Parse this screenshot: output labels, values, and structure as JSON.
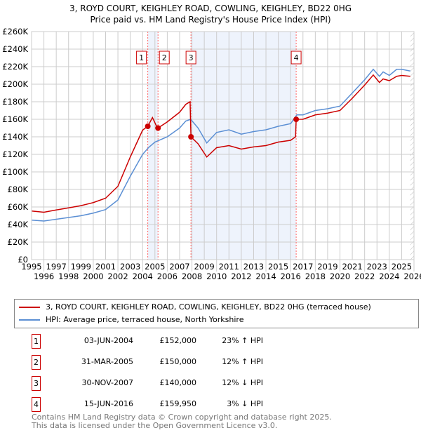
{
  "chart_data": {
    "type": "line",
    "title": "3, ROYD COURT, KEIGHLEY ROAD, COWLING, KEIGHLEY, BD22 0HG",
    "subtitle": "Price paid vs. HM Land Registry's House Price Index (HPI)",
    "xlim": [
      1995,
      2026
    ],
    "ylim": [
      0,
      260000
    ],
    "x_ticks": [
      "1995",
      "1996",
      "1997",
      "1998",
      "1999",
      "2000",
      "2001",
      "2002",
      "2003",
      "2004",
      "2005",
      "2006",
      "2007",
      "2008",
      "2009",
      "2010",
      "2011",
      "2012",
      "2013",
      "2014",
      "2015",
      "2016",
      "2017",
      "2018",
      "2019",
      "2020",
      "2021",
      "2022",
      "2023",
      "2024",
      "2025",
      "2026"
    ],
    "y_ticks": [
      {
        "v": 0,
        "label": "£0"
      },
      {
        "v": 20000,
        "label": "£20K"
      },
      {
        "v": 40000,
        "label": "£40K"
      },
      {
        "v": 60000,
        "label": "£60K"
      },
      {
        "v": 80000,
        "label": "£80K"
      },
      {
        "v": 100000,
        "label": "£100K"
      },
      {
        "v": 120000,
        "label": "£120K"
      },
      {
        "v": 140000,
        "label": "£140K"
      },
      {
        "v": 160000,
        "label": "£160K"
      },
      {
        "v": 180000,
        "label": "£180K"
      },
      {
        "v": 200000,
        "label": "£200K"
      },
      {
        "v": 220000,
        "label": "£220K"
      },
      {
        "v": 240000,
        "label": "£240K"
      },
      {
        "v": 260000,
        "label": "£260K"
      }
    ],
    "grid": true,
    "colors": {
      "property": "#cc0000",
      "hpi": "#5b8fd4",
      "shade": "#eef3fc",
      "marker_line": "#ff6666"
    },
    "series": [
      {
        "name": "3, ROYD COURT, KEIGHLEY ROAD, COWLING, KEIGHLEY, BD22 0HG (terraced house)",
        "points": [
          [
            1995,
            55400
          ],
          [
            1996,
            54000
          ],
          [
            1997,
            56600
          ],
          [
            1998,
            59000
          ],
          [
            1999,
            61500
          ],
          [
            2000,
            65000
          ],
          [
            2001,
            70000
          ],
          [
            2002,
            83600
          ],
          [
            2003,
            117000
          ],
          [
            2004,
            147600
          ],
          [
            2004.42,
            152000
          ],
          [
            2004.8,
            162000
          ],
          [
            2005.2,
            150000
          ],
          [
            2005.25,
            150000
          ],
          [
            2006,
            157000
          ],
          [
            2007,
            168000
          ],
          [
            2007.5,
            177000
          ],
          [
            2007.85,
            180000
          ],
          [
            2007.92,
            140000
          ],
          [
            2008.5,
            132000
          ],
          [
            2009.2,
            117000
          ],
          [
            2010,
            127600
          ],
          [
            2011,
            130000
          ],
          [
            2012,
            126000
          ],
          [
            2013,
            128500
          ],
          [
            2014,
            130000
          ],
          [
            2015,
            134000
          ],
          [
            2016,
            136000
          ],
          [
            2016.4,
            140000
          ],
          [
            2016.45,
            159950
          ],
          [
            2017,
            160000
          ],
          [
            2018,
            165000
          ],
          [
            2019,
            167000
          ],
          [
            2020,
            170000
          ],
          [
            2021,
            184000
          ],
          [
            2022,
            199000
          ],
          [
            2022.7,
            210500
          ],
          [
            2023.2,
            202000
          ],
          [
            2023.5,
            206000
          ],
          [
            2024,
            204000
          ],
          [
            2024.6,
            209000
          ],
          [
            2025,
            210000
          ],
          [
            2025.7,
            209000
          ]
        ]
      },
      {
        "name": "HPI: Average price, terraced house, North Yorkshire",
        "points": [
          [
            1995,
            45000
          ],
          [
            1996,
            44000
          ],
          [
            1997,
            46000
          ],
          [
            1998,
            48000
          ],
          [
            1999,
            50000
          ],
          [
            2000,
            53000
          ],
          [
            2001,
            57000
          ],
          [
            2002,
            68000
          ],
          [
            2003,
            95000
          ],
          [
            2004,
            120000
          ],
          [
            2004.5,
            128000
          ],
          [
            2005,
            134000
          ],
          [
            2006,
            140000
          ],
          [
            2007,
            150000
          ],
          [
            2007.5,
            158000
          ],
          [
            2007.9,
            160000
          ],
          [
            2008.5,
            150000
          ],
          [
            2009.2,
            133000
          ],
          [
            2010,
            145000
          ],
          [
            2011,
            148000
          ],
          [
            2012,
            143000
          ],
          [
            2013,
            146000
          ],
          [
            2014,
            148000
          ],
          [
            2015,
            152000
          ],
          [
            2016,
            155000
          ],
          [
            2016.5,
            165000
          ],
          [
            2017,
            165000
          ],
          [
            2018,
            170000
          ],
          [
            2019,
            172000
          ],
          [
            2020,
            175000
          ],
          [
            2021,
            190000
          ],
          [
            2022,
            205000
          ],
          [
            2022.7,
            217000
          ],
          [
            2023.2,
            209000
          ],
          [
            2023.5,
            214000
          ],
          [
            2024,
            210000
          ],
          [
            2024.6,
            217000
          ],
          [
            2025,
            217000
          ],
          [
            2025.7,
            215000
          ]
        ]
      }
    ],
    "hatch_from": 2025.7,
    "sales": [
      {
        "num": "1",
        "x": 2004.42,
        "price": 152000,
        "date": "03-JUN-2004",
        "price_label": "£152,000",
        "hpi": "23% ↑ HPI"
      },
      {
        "num": "2",
        "x": 2005.25,
        "price": 150000,
        "date": "31-MAR-2005",
        "price_label": "£150,000",
        "hpi": "12% ↑ HPI"
      },
      {
        "num": "3",
        "x": 2007.92,
        "price": 140000,
        "date": "30-NOV-2007",
        "price_label": "£140,000",
        "hpi": "12% ↓ HPI"
      },
      {
        "num": "4",
        "x": 2016.45,
        "price": 159950,
        "date": "15-JUN-2016",
        "price_label": "£159,950",
        "hpi": "3% ↓ HPI"
      }
    ]
  },
  "legend": {
    "property": "3, ROYD COURT, KEIGHLEY ROAD, COWLING, KEIGHLEY, BD22 0HG (terraced house)",
    "hpi": "HPI: Average price, terraced house, North Yorkshire"
  },
  "footer": {
    "line1": "Contains HM Land Registry data © Crown copyright and database right 2025.",
    "line2": "This data is licensed under the Open Government Licence v3.0."
  }
}
